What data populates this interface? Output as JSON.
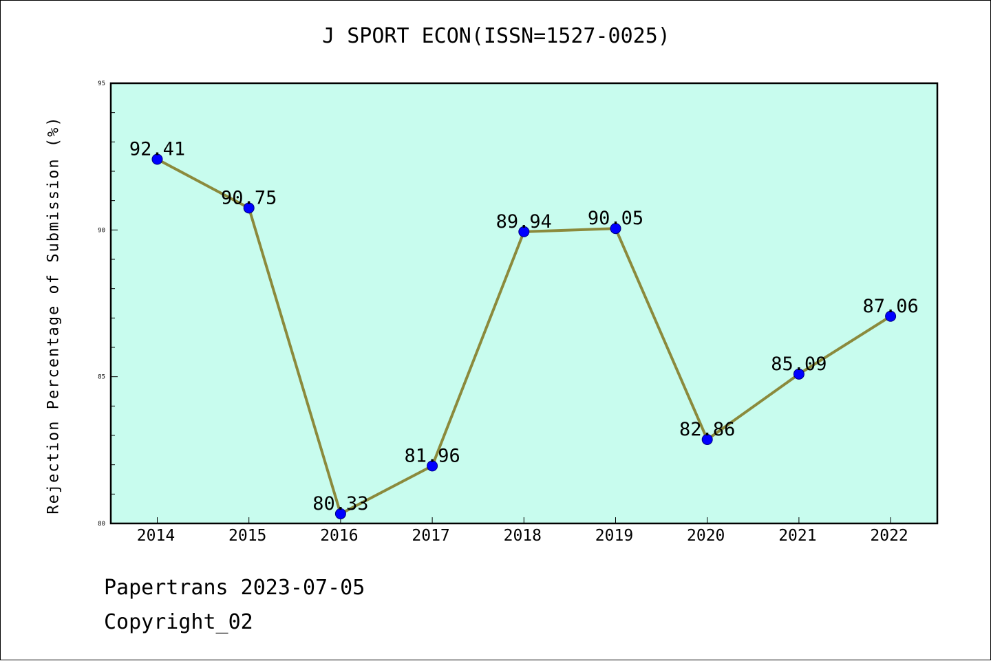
{
  "chart_data": {
    "type": "line",
    "title": "J SPORT ECON(ISSN=1527-0025)",
    "xlabel": "",
    "ylabel": "Rejection Percentage of Submission (%)",
    "categories": [
      "2014",
      "2015",
      "2016",
      "2017",
      "2018",
      "2019",
      "2020",
      "2021",
      "2022"
    ],
    "series": [
      {
        "values": [
          92.41,
          90.75,
          80.33,
          81.96,
          89.94,
          90.05,
          82.86,
          85.09,
          87.06
        ],
        "labels": [
          "92.41",
          "90.75",
          "80.33",
          "81.96",
          "89.94",
          "90.05",
          "82.86",
          "85.09",
          "87.06"
        ]
      }
    ],
    "ylim": [
      80,
      95
    ],
    "yticks": [
      80,
      85,
      90,
      95
    ],
    "ytick_labels": [
      "80",
      "85",
      "90",
      "95"
    ],
    "grid": false,
    "legend": "none",
    "colors": {
      "plot_background": "#c8fcee",
      "line": "#8b8a3c",
      "marker": "#0000ff",
      "axes": "#000000"
    }
  },
  "footer": {
    "date_text": "Papertrans 2023-07-05",
    "copyright_text": "Copyright_02"
  }
}
